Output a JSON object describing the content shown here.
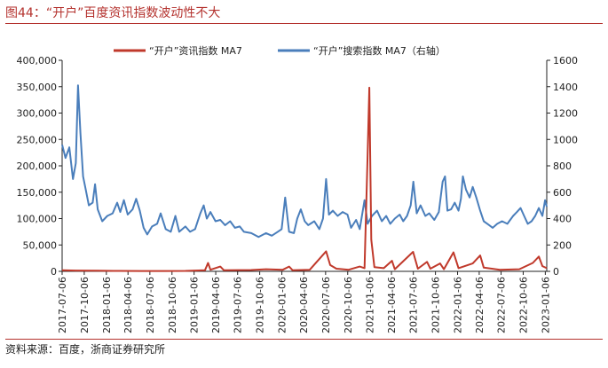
{
  "title": "图44：“开户”百度资讯指数波动性不大",
  "source": "资料来源：百度，浙商证券研究所",
  "chart_data": {
    "type": "line",
    "title": "“开户”百度资讯指数波动性不大",
    "x_start": "2017-07-06",
    "x_end": "2023-01-12",
    "x_ticks": [
      "2017-07-06",
      "2017-10-06",
      "2018-01-06",
      "2018-04-06",
      "2018-07-06",
      "2018-10-06",
      "2019-01-06",
      "2019-04-06",
      "2019-07-06",
      "2019-10-06",
      "2020-01-06",
      "2020-04-06",
      "2020-07-06",
      "2020-10-06",
      "2021-01-06",
      "2021-04-06",
      "2021-07-06",
      "2021-10-06",
      "2022-01-06",
      "2022-04-06",
      "2022-07-06",
      "2022-10-06",
      "2023-01-06"
    ],
    "y_left": {
      "min": 0,
      "max": 400000,
      "ticks": [
        "0",
        "50,000",
        "100,000",
        "150,000",
        "200,000",
        "250,000",
        "300,000",
        "350,000",
        "400,000"
      ]
    },
    "y_right": {
      "min": 0,
      "max": 1600,
      "ticks": [
        "0",
        "200",
        "400",
        "600",
        "800",
        "1000",
        "1200",
        "1400",
        "1600"
      ]
    },
    "legend_position": "top",
    "grid": false,
    "series": [
      {
        "name": "“开户”资讯指数 MA7",
        "axis": "left",
        "color": "#c0392b",
        "points": [
          [
            "2017-07-06",
            2000
          ],
          [
            "2017-09-01",
            1500
          ],
          [
            "2017-12-01",
            1200
          ],
          [
            "2018-03-01",
            800
          ],
          [
            "2018-06-01",
            700
          ],
          [
            "2018-09-01",
            600
          ],
          [
            "2018-12-01",
            900
          ],
          [
            "2019-02-20",
            2000
          ],
          [
            "2019-03-05",
            16000
          ],
          [
            "2019-03-15",
            3000
          ],
          [
            "2019-04-25",
            9000
          ],
          [
            "2019-05-10",
            2000
          ],
          [
            "2019-09-01",
            2500
          ],
          [
            "2019-11-01",
            4000
          ],
          [
            "2020-01-10",
            3000
          ],
          [
            "2020-02-05",
            9000
          ],
          [
            "2020-02-20",
            2000
          ],
          [
            "2020-05-01",
            3000
          ],
          [
            "2020-07-08",
            38000
          ],
          [
            "2020-07-25",
            12000
          ],
          [
            "2020-08-20",
            5000
          ],
          [
            "2020-10-10",
            3000
          ],
          [
            "2020-11-25",
            9000
          ],
          [
            "2020-12-15",
            6000
          ],
          [
            "2020-12-27",
            210000
          ],
          [
            "2021-01-04",
            348000
          ],
          [
            "2021-01-12",
            60000
          ],
          [
            "2021-01-25",
            8000
          ],
          [
            "2021-03-05",
            6000
          ],
          [
            "2021-04-08",
            20000
          ],
          [
            "2021-04-20",
            4000
          ],
          [
            "2021-07-05",
            37000
          ],
          [
            "2021-07-25",
            5000
          ],
          [
            "2021-09-01",
            18000
          ],
          [
            "2021-09-15",
            5000
          ],
          [
            "2021-10-25",
            15000
          ],
          [
            "2021-11-10",
            4000
          ],
          [
            "2021-12-20",
            36000
          ],
          [
            "2022-01-10",
            6000
          ],
          [
            "2022-03-10",
            15000
          ],
          [
            "2022-04-10",
            30000
          ],
          [
            "2022-04-25",
            7000
          ],
          [
            "2022-07-01",
            3000
          ],
          [
            "2022-09-20",
            4000
          ],
          [
            "2022-11-15",
            16000
          ],
          [
            "2022-12-10",
            28000
          ],
          [
            "2022-12-25",
            10000
          ],
          [
            "2023-01-12",
            6000
          ]
        ]
      },
      {
        "name": "“开户”搜索指数 MA7（右轴）",
        "axis": "right",
        "color": "#4a7ebb",
        "points": [
          [
            "2017-07-06",
            960
          ],
          [
            "2017-07-20",
            860
          ],
          [
            "2017-08-05",
            940
          ],
          [
            "2017-08-20",
            700
          ],
          [
            "2017-09-01",
            820
          ],
          [
            "2017-09-10",
            1410
          ],
          [
            "2017-09-20",
            1050
          ],
          [
            "2017-10-01",
            720
          ],
          [
            "2017-10-10",
            640
          ],
          [
            "2017-10-25",
            500
          ],
          [
            "2017-11-10",
            520
          ],
          [
            "2017-11-20",
            660
          ],
          [
            "2017-12-01",
            470
          ],
          [
            "2017-12-20",
            380
          ],
          [
            "2018-01-10",
            420
          ],
          [
            "2018-02-01",
            440
          ],
          [
            "2018-02-20",
            520
          ],
          [
            "2018-03-05",
            450
          ],
          [
            "2018-03-20",
            540
          ],
          [
            "2018-04-05",
            430
          ],
          [
            "2018-04-25",
            470
          ],
          [
            "2018-05-10",
            550
          ],
          [
            "2018-05-25",
            460
          ],
          [
            "2018-06-10",
            330
          ],
          [
            "2018-06-25",
            280
          ],
          [
            "2018-07-15",
            340
          ],
          [
            "2018-08-05",
            360
          ],
          [
            "2018-08-20",
            440
          ],
          [
            "2018-09-10",
            320
          ],
          [
            "2018-10-01",
            300
          ],
          [
            "2018-10-20",
            420
          ],
          [
            "2018-11-05",
            300
          ],
          [
            "2018-12-01",
            340
          ],
          [
            "2018-12-20",
            300
          ],
          [
            "2019-01-10",
            320
          ],
          [
            "2019-02-01",
            440
          ],
          [
            "2019-02-15",
            500
          ],
          [
            "2019-02-28",
            400
          ],
          [
            "2019-03-15",
            450
          ],
          [
            "2019-04-05",
            380
          ],
          [
            "2019-04-25",
            390
          ],
          [
            "2019-05-15",
            350
          ],
          [
            "2019-06-05",
            380
          ],
          [
            "2019-06-25",
            330
          ],
          [
            "2019-07-15",
            340
          ],
          [
            "2019-08-01",
            300
          ],
          [
            "2019-09-01",
            290
          ],
          [
            "2019-10-01",
            260
          ],
          [
            "2019-11-01",
            290
          ],
          [
            "2019-11-25",
            270
          ],
          [
            "2019-12-20",
            300
          ],
          [
            "2020-01-05",
            320
          ],
          [
            "2020-01-20",
            560
          ],
          [
            "2020-02-05",
            300
          ],
          [
            "2020-02-25",
            290
          ],
          [
            "2020-03-10",
            400
          ],
          [
            "2020-03-25",
            470
          ],
          [
            "2020-04-10",
            380
          ],
          [
            "2020-04-25",
            350
          ],
          [
            "2020-05-20",
            380
          ],
          [
            "2020-06-10",
            320
          ],
          [
            "2020-06-25",
            400
          ],
          [
            "2020-07-08",
            700
          ],
          [
            "2020-07-20",
            430
          ],
          [
            "2020-08-05",
            460
          ],
          [
            "2020-08-25",
            420
          ],
          [
            "2020-09-15",
            450
          ],
          [
            "2020-10-05",
            430
          ],
          [
            "2020-10-20",
            330
          ],
          [
            "2020-11-10",
            390
          ],
          [
            "2020-11-25",
            320
          ],
          [
            "2020-12-15",
            540
          ],
          [
            "2020-12-28",
            360
          ],
          [
            "2021-01-15",
            420
          ],
          [
            "2021-02-05",
            460
          ],
          [
            "2021-02-25",
            380
          ],
          [
            "2021-03-15",
            420
          ],
          [
            "2021-04-01",
            360
          ],
          [
            "2021-04-20",
            400
          ],
          [
            "2021-05-10",
            430
          ],
          [
            "2021-05-25",
            380
          ],
          [
            "2021-06-10",
            420
          ],
          [
            "2021-06-25",
            500
          ],
          [
            "2021-07-06",
            680
          ],
          [
            "2021-07-20",
            440
          ],
          [
            "2021-08-05",
            500
          ],
          [
            "2021-08-25",
            420
          ],
          [
            "2021-09-10",
            440
          ],
          [
            "2021-10-01",
            390
          ],
          [
            "2021-10-20",
            450
          ],
          [
            "2021-11-05",
            680
          ],
          [
            "2021-11-15",
            720
          ],
          [
            "2021-11-25",
            460
          ],
          [
            "2021-12-10",
            470
          ],
          [
            "2021-12-25",
            520
          ],
          [
            "2022-01-10",
            460
          ],
          [
            "2022-01-20",
            550
          ],
          [
            "2022-01-28",
            720
          ],
          [
            "2022-02-10",
            620
          ],
          [
            "2022-02-25",
            560
          ],
          [
            "2022-03-10",
            640
          ],
          [
            "2022-03-25",
            560
          ],
          [
            "2022-04-10",
            460
          ],
          [
            "2022-04-25",
            380
          ],
          [
            "2022-05-10",
            360
          ],
          [
            "2022-06-01",
            330
          ],
          [
            "2022-06-20",
            360
          ],
          [
            "2022-07-10",
            380
          ],
          [
            "2022-08-01",
            360
          ],
          [
            "2022-08-25",
            420
          ],
          [
            "2022-09-10",
            450
          ],
          [
            "2022-09-25",
            480
          ],
          [
            "2022-10-10",
            420
          ],
          [
            "2022-10-25",
            360
          ],
          [
            "2022-11-10",
            380
          ],
          [
            "2022-11-25",
            420
          ],
          [
            "2022-12-10",
            480
          ],
          [
            "2022-12-25",
            420
          ],
          [
            "2023-01-05",
            540
          ],
          [
            "2023-01-12",
            490
          ]
        ]
      }
    ]
  }
}
